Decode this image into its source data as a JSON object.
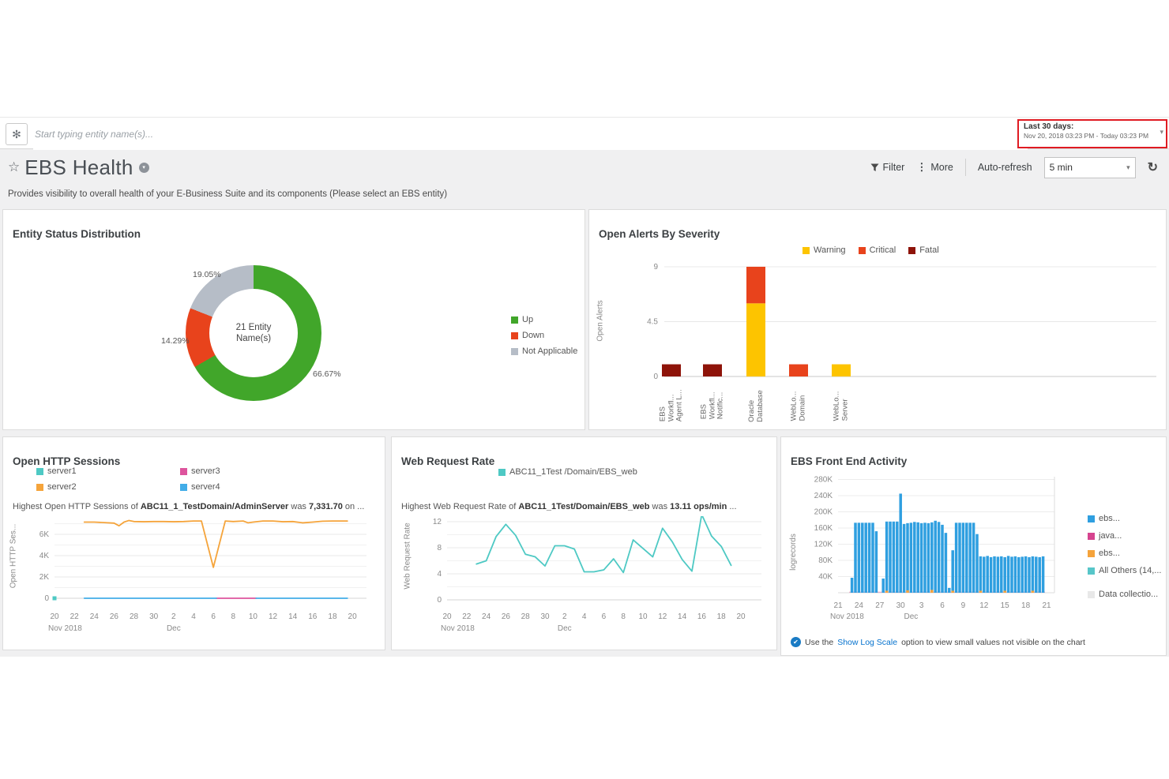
{
  "topbar": {
    "search_placeholder": "Start typing entity name(s)...",
    "time_range": {
      "label": "Last 30 days:",
      "value": "Nov 20, 2018 03:23 PM - Today 03:23 PM"
    }
  },
  "header": {
    "title": "EBS Health",
    "subtitle": "Provides visibility to overall health of your E-Business Suite and its components (Please select an EBS entity)",
    "filter_label": "Filter",
    "more_label": "More",
    "autorefresh_label": "Auto-refresh",
    "autorefresh_value": "5 min"
  },
  "chart_data": [
    {
      "type": "pie",
      "title": "Entity Status Distribution",
      "center_label": [
        "21 Entity",
        "Name(s)"
      ],
      "slices": [
        {
          "label": "Up",
          "value": 66.67,
          "pct_label": "66.67%",
          "color": "#41a62a"
        },
        {
          "label": "Down",
          "value": 14.29,
          "pct_label": "14.29%",
          "color": "#e8431c"
        },
        {
          "label": "Not Applicable",
          "value": 19.05,
          "pct_label": "19.05%",
          "color": "#b6bdc7"
        }
      ],
      "legend_position": "right"
    },
    {
      "type": "bar",
      "stacked": true,
      "title": "Open Alerts By Severity",
      "ylabel": "Open Alerts",
      "ylim": [
        0,
        9
      ],
      "yticks": [
        0,
        4.5,
        9
      ],
      "categories": [
        [
          "EBS",
          "Workfl...",
          "Agent L..."
        ],
        [
          "EBS",
          "Workfl...",
          "Notific..."
        ],
        [
          "Oracle",
          "Database"
        ],
        [
          "WebLo...",
          "Domain"
        ],
        [
          "WebLo...",
          "Server"
        ]
      ],
      "series": [
        {
          "name": "Warning",
          "color": "#fdc400",
          "values": [
            0,
            0,
            6,
            0,
            1
          ]
        },
        {
          "name": "Critical",
          "color": "#e8431c",
          "values": [
            0,
            0,
            3,
            1,
            0
          ]
        },
        {
          "name": "Fatal",
          "color": "#8e1309",
          "values": [
            1,
            1,
            0,
            0,
            0
          ]
        }
      ],
      "legend_position": "top"
    },
    {
      "type": "line",
      "title": "Open HTTP Sessions",
      "subtitle": {
        "prefix": "Highest Open HTTP Sessions of ",
        "entity": "ABC11_1_TestDomain/AdminServer",
        "mid": " was ",
        "value": "7,331.70",
        "suffix": " on ..."
      },
      "ylabel": "Open HTTP Ses...",
      "ylim": [
        0,
        7800
      ],
      "yticks": [
        {
          "v": 0,
          "label": "0"
        },
        {
          "v": 2000,
          "label": "2K"
        },
        {
          "v": 4000,
          "label": "4K"
        },
        {
          "v": 6000,
          "label": "6K"
        }
      ],
      "minor_gridlines": [
        1000,
        3000,
        5000,
        7000
      ],
      "x_axis": {
        "start_label": "Nov 2018",
        "mid_label": "Dec",
        "mid_day": 12,
        "ticks": [
          "20",
          "22",
          "24",
          "26",
          "28",
          "30",
          "2",
          "4",
          "6",
          "8",
          "10",
          "12",
          "14",
          "16",
          "18",
          "20"
        ],
        "tick_days": [
          0,
          2,
          4,
          6,
          8,
          10,
          12,
          14,
          16,
          18,
          20,
          22,
          24,
          26,
          28,
          30
        ]
      },
      "series": [
        {
          "name": "server1",
          "color": "#4ec9c4",
          "dot_at": [
            0,
            0
          ]
        },
        {
          "name": "server2",
          "color": "#f5a43b",
          "segments": [
            [
              [
                3,
                7150
              ],
              [
                4,
                7150
              ],
              [
                5,
                7100
              ],
              [
                6,
                7050
              ],
              [
                6.5,
                6800
              ],
              [
                7,
                7150
              ],
              [
                7.5,
                7300
              ],
              [
                8,
                7200
              ],
              [
                9,
                7180
              ],
              [
                10,
                7200
              ],
              [
                11,
                7200
              ],
              [
                12,
                7180
              ],
              [
                13,
                7200
              ],
              [
                14,
                7250
              ],
              [
                14.8,
                7250
              ],
              [
                16,
                2900
              ],
              [
                17.2,
                7250
              ],
              [
                18,
                7200
              ],
              [
                19,
                7250
              ],
              [
                19.5,
                7080
              ],
              [
                20,
                7150
              ],
              [
                21,
                7250
              ],
              [
                22,
                7250
              ],
              [
                23,
                7180
              ],
              [
                24,
                7200
              ],
              [
                25,
                7080
              ],
              [
                26,
                7150
              ],
              [
                27,
                7230
              ],
              [
                28,
                7250
              ],
              [
                29.5,
                7250
              ]
            ]
          ]
        },
        {
          "name": "server3",
          "color": "#dd549d",
          "segments": [
            [
              [
                16.3,
                0
              ],
              [
                20.3,
                0
              ]
            ]
          ]
        },
        {
          "name": "server4",
          "color": "#42ade8",
          "segments": [
            [
              [
                3,
                0
              ],
              [
                16.3,
                0
              ]
            ],
            [
              [
                20.3,
                0
              ],
              [
                29.5,
                0
              ]
            ]
          ]
        }
      ],
      "legend_position": "top"
    },
    {
      "type": "line",
      "title": "Web Request Rate",
      "subtitle": {
        "prefix": "Highest Web Request Rate of ",
        "entity": "ABC11_1Test/Domain/EBS_web",
        "mid": " was ",
        "value": "13.11 ops/min",
        "suffix": " ..."
      },
      "ylabel": "Web Request Rate",
      "ylim": [
        0,
        13.5
      ],
      "yticks": [
        {
          "v": 0,
          "label": "0"
        },
        {
          "v": 4,
          "label": "4"
        },
        {
          "v": 8,
          "label": "8"
        },
        {
          "v": 12,
          "label": "12"
        }
      ],
      "minor_gridlines": [
        2,
        6,
        10
      ],
      "x_axis": {
        "start_label": "Nov 2018",
        "mid_label": "Dec",
        "mid_day": 12,
        "ticks": [
          "20",
          "22",
          "24",
          "26",
          "28",
          "30",
          "2",
          "4",
          "6",
          "8",
          "10",
          "12",
          "14",
          "16",
          "18",
          "20"
        ],
        "tick_days": [
          0,
          2,
          4,
          6,
          8,
          10,
          12,
          14,
          16,
          18,
          20,
          22,
          24,
          26,
          28,
          30
        ]
      },
      "series": [
        {
          "name": "ABC11_1Test /Domain/EBS_web",
          "color": "#4ec9c4",
          "segments": [
            [
              [
                3,
                5.5
              ],
              [
                4,
                6.0
              ],
              [
                5,
                9.7
              ],
              [
                6,
                11.6
              ],
              [
                7,
                9.9
              ],
              [
                8,
                7.0
              ],
              [
                9,
                6.6
              ],
              [
                10,
                5.2
              ],
              [
                11,
                8.3
              ],
              [
                12,
                8.3
              ],
              [
                13,
                7.8
              ],
              [
                14,
                4.3
              ],
              [
                15,
                4.3
              ],
              [
                16,
                4.6
              ],
              [
                17,
                6.3
              ],
              [
                18,
                4.2
              ],
              [
                19,
                9.2
              ],
              [
                20,
                7.9
              ],
              [
                21,
                6.6
              ],
              [
                22,
                11.0
              ],
              [
                23,
                8.9
              ],
              [
                24,
                6.2
              ],
              [
                25,
                4.4
              ],
              [
                26,
                13.1
              ],
              [
                27,
                9.8
              ],
              [
                28,
                8.2
              ],
              [
                29,
                5.3
              ]
            ]
          ]
        }
      ],
      "legend_position": "top"
    },
    {
      "type": "bar",
      "title": "EBS Front End Activity",
      "ylabel": "logrecords",
      "y_unit": "K",
      "ylim": [
        0,
        290
      ],
      "yticks": [
        {
          "v": 40,
          "label": "40K"
        },
        {
          "v": 80,
          "label": "80K"
        },
        {
          "v": 120,
          "label": "120K"
        },
        {
          "v": 160,
          "label": "160K"
        },
        {
          "v": 200,
          "label": "200K"
        },
        {
          "v": 240,
          "label": "240K"
        },
        {
          "v": 280,
          "label": "280K"
        }
      ],
      "x_axis": {
        "start_label": "Nov 2018",
        "mid_label": "Dec",
        "mid_day": 10.5,
        "ticks": [
          "21",
          "24",
          "27",
          "30",
          "3",
          "6",
          "9",
          "12",
          "15",
          "18",
          "21"
        ],
        "tick_days": [
          0,
          3,
          6,
          9,
          12,
          15,
          18,
          21,
          24,
          27,
          30
        ]
      },
      "series": [
        {
          "name": "ebs...",
          "color": "#2f9fe0",
          "bars": [
            [
              2,
              37
            ],
            [
              2.5,
              173
            ],
            [
              3,
              173
            ],
            [
              3.5,
              173
            ],
            [
              4,
              173
            ],
            [
              4.5,
              173
            ],
            [
              5,
              173
            ],
            [
              5.5,
              152
            ],
            [
              6.5,
              35
            ],
            [
              7,
              176
            ],
            [
              7.5,
              176
            ],
            [
              8,
              176
            ],
            [
              8.5,
              176
            ],
            [
              9,
              245
            ],
            [
              9.5,
              170
            ],
            [
              10,
              172
            ],
            [
              10.5,
              173
            ],
            [
              11,
              175
            ],
            [
              11.5,
              174
            ],
            [
              12,
              172
            ],
            [
              12.5,
              173
            ],
            [
              13,
              172
            ],
            [
              13.5,
              174
            ],
            [
              14,
              178
            ],
            [
              14.5,
              175
            ],
            [
              15,
              168
            ],
            [
              15.5,
              148
            ],
            [
              16,
              12
            ],
            [
              16.5,
              105
            ],
            [
              17,
              173
            ],
            [
              17.5,
              173
            ],
            [
              18,
              173
            ],
            [
              18.5,
              173
            ],
            [
              19,
              173
            ],
            [
              19.5,
              173
            ],
            [
              20,
              145
            ],
            [
              20.5,
              90
            ],
            [
              21,
              89
            ],
            [
              21.5,
              91
            ],
            [
              22,
              88
            ],
            [
              22.5,
              90
            ],
            [
              23,
              89
            ],
            [
              23.5,
              90
            ],
            [
              24,
              88
            ],
            [
              24.5,
              91
            ],
            [
              25,
              89
            ],
            [
              25.5,
              90
            ],
            [
              26,
              88
            ],
            [
              26.5,
              89
            ],
            [
              27,
              90
            ],
            [
              27.5,
              88
            ],
            [
              28,
              90
            ],
            [
              28.5,
              89
            ],
            [
              29,
              88
            ],
            [
              29.5,
              90
            ]
          ]
        },
        {
          "name": "java...",
          "color": "#d6448f",
          "bars": []
        },
        {
          "name": "ebs...",
          "color": "#f5a33b",
          "bars": [
            [
              7,
              5
            ],
            [
              10,
              6
            ],
            [
              13.5,
              7
            ],
            [
              16.5,
              5
            ],
            [
              20.5,
              5
            ],
            [
              24,
              5
            ],
            [
              28,
              5
            ]
          ]
        },
        {
          "name": "All Others (14,...",
          "color": "#57c6c9",
          "bars": []
        },
        {
          "name": "Data collectio...",
          "color": "#e8e8e8",
          "bars": []
        }
      ],
      "footnote": {
        "prefix": "Use the ",
        "link": "Show Log Scale",
        "suffix": " option to view small values not visible on the chart"
      }
    }
  ]
}
